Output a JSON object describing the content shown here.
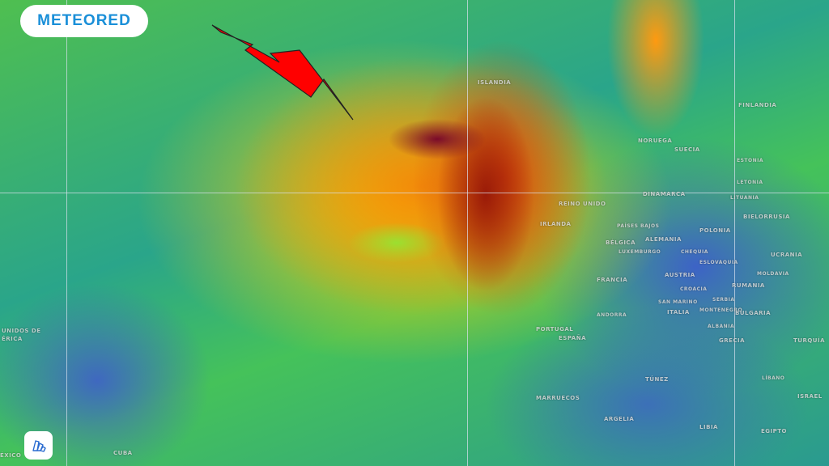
{
  "brand": {
    "logo_text": "METEORED",
    "color": "#1a8fd8"
  },
  "map": {
    "overlay": "wind-gust-heatmap",
    "color_scale": [
      "#3d63c6",
      "#2aa58a",
      "#45c25a",
      "#ffd000",
      "#f28a0a",
      "#d9480c",
      "#7a0a2a"
    ],
    "annotation": {
      "type": "arrow",
      "color": "#ff0000"
    },
    "labels": [
      "ISLANDIA",
      "NORUEGA",
      "SUECIA",
      "FINLANDIA",
      "ESTONIA",
      "LETONIA",
      "LITUANIA",
      "DINAMARCA",
      "REINO UNIDO",
      "IRLANDA",
      "PAÍSES BAJOS",
      "BÉLGICA",
      "LUXEMBURGO",
      "ALEMANIA",
      "POLONIA",
      "BIELORRUSIA",
      "CHEQUIA",
      "ESLOVAQUIA",
      "UCRANIA",
      "MOLDAVIA",
      "FRANCIA",
      "AUSTRIA",
      "RUMANIA",
      "CROACIA",
      "SAN MARINO",
      "SERBIA",
      "ITALIA",
      "MONTENEGRO",
      "BULGARIA",
      "ANDORRA",
      "ALBANIA",
      "PORTUGAL",
      "ESPAÑA",
      "GRECIA",
      "TURQUÍA",
      "TÚNEZ",
      "LÍBANO",
      "ISRAEL",
      "MARRUECOS",
      "ARGELIA",
      "LIBIA",
      "EGIPTO",
      "UNIDOS DE",
      "ÉRICA",
      "ÉXICO",
      "CUBA"
    ]
  },
  "controls": {
    "layers_icon": "layers-icon"
  }
}
